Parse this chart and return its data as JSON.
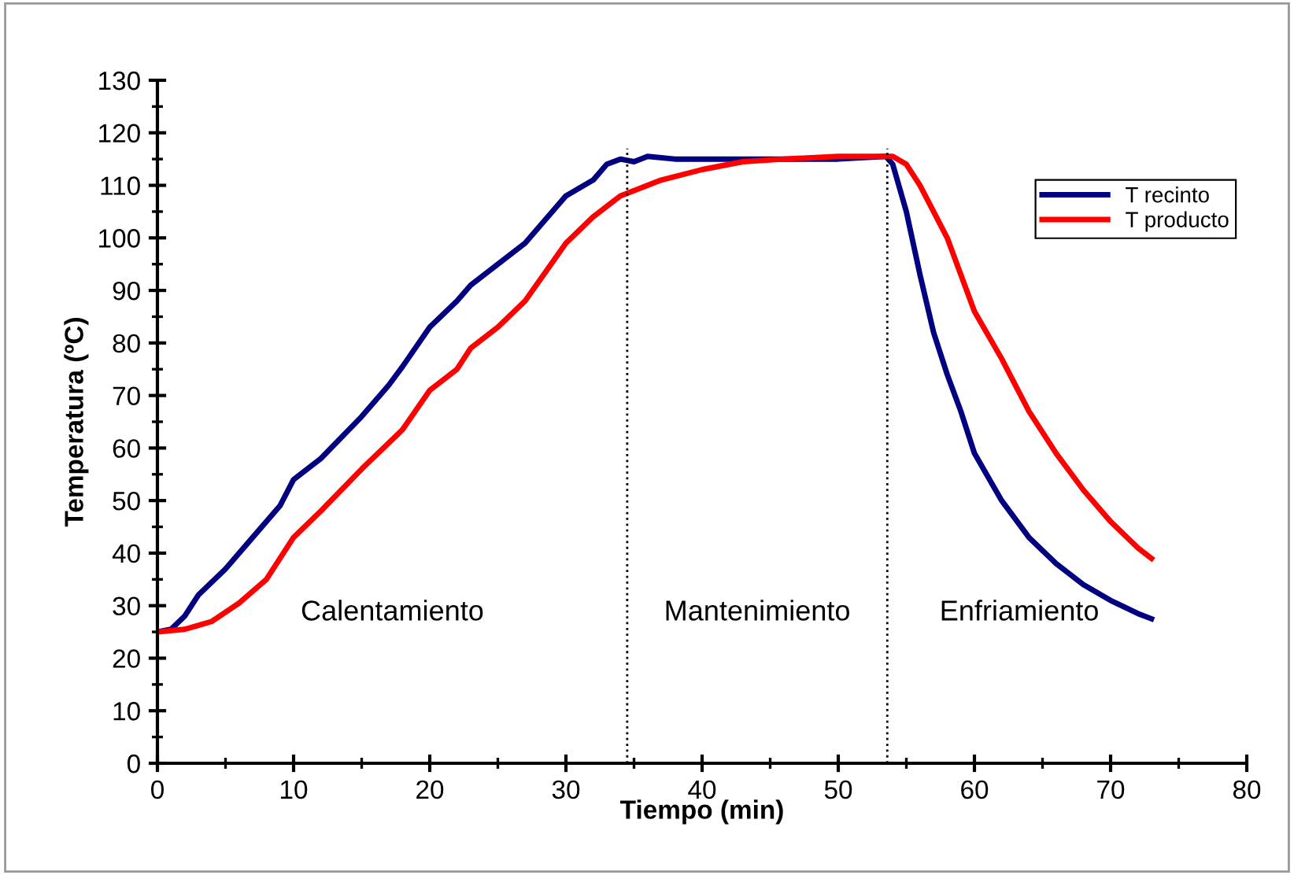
{
  "chart_data": {
    "type": "line",
    "xlabel": "Tiempo (min)",
    "ylabel": "Temperatura (ºC)",
    "xlim": [
      0,
      80
    ],
    "xticks": [
      0,
      10,
      20,
      30,
      40,
      50,
      60,
      70,
      80
    ],
    "ylim": [
      0,
      130
    ],
    "yticks": [
      0,
      10,
      20,
      30,
      40,
      50,
      60,
      70,
      80,
      90,
      100,
      110,
      120,
      130
    ],
    "grid": false,
    "legend": "top right",
    "line_style": "solid",
    "marker": "none",
    "series": [
      {
        "name": "T recinto",
        "color": "#000080",
        "x": [
          0,
          1,
          2,
          3,
          5,
          7,
          9,
          10,
          12,
          15,
          17,
          18,
          20,
          22,
          23,
          25,
          27,
          30,
          32,
          33,
          34,
          35,
          36,
          38,
          40,
          45,
          50,
          53.5,
          54,
          55,
          56,
          57,
          58,
          59,
          60,
          62,
          64,
          66,
          68,
          70,
          72,
          73
        ],
        "values": [
          25,
          25.5,
          28,
          32,
          37,
          43,
          49,
          54,
          58,
          66,
          72,
          75.5,
          83,
          88,
          91,
          95,
          99,
          108,
          111,
          114,
          115,
          114.5,
          115.5,
          115,
          115,
          115,
          115,
          115.5,
          114,
          105,
          93,
          82,
          74,
          67,
          59,
          50,
          43,
          38,
          34,
          31,
          28.5,
          27.5
        ]
      },
      {
        "name": "T producto",
        "color": "#ff0000",
        "x": [
          0,
          2,
          4,
          6,
          8,
          10,
          12,
          15,
          17,
          18,
          20,
          22,
          23,
          25,
          27,
          30,
          32,
          33,
          34,
          35,
          37,
          40,
          43,
          46,
          50,
          54,
          55,
          56,
          58,
          60,
          62,
          64,
          66,
          68,
          70,
          72,
          73
        ],
        "values": [
          25,
          25.5,
          27,
          30.5,
          35,
          43,
          48,
          56,
          61,
          63.5,
          71,
          75,
          79,
          83,
          88,
          99,
          104,
          106,
          108,
          109,
          111,
          113,
          114.5,
          115,
          115.5,
          115.5,
          114,
          110,
          100,
          86,
          77,
          67,
          59,
          52,
          46,
          41,
          39
        ]
      }
    ],
    "ref_lines": [
      {
        "axis": "x",
        "value": 34.5,
        "label": null,
        "color": "#000000",
        "line_style": "dotted"
      },
      {
        "axis": "x",
        "value": 53.6,
        "label": null,
        "color": "#000000",
        "line_style": "dotted"
      }
    ],
    "annotations": [
      "Calentamiento",
      "Mantenimiento",
      "Enfriamiento"
    ]
  }
}
